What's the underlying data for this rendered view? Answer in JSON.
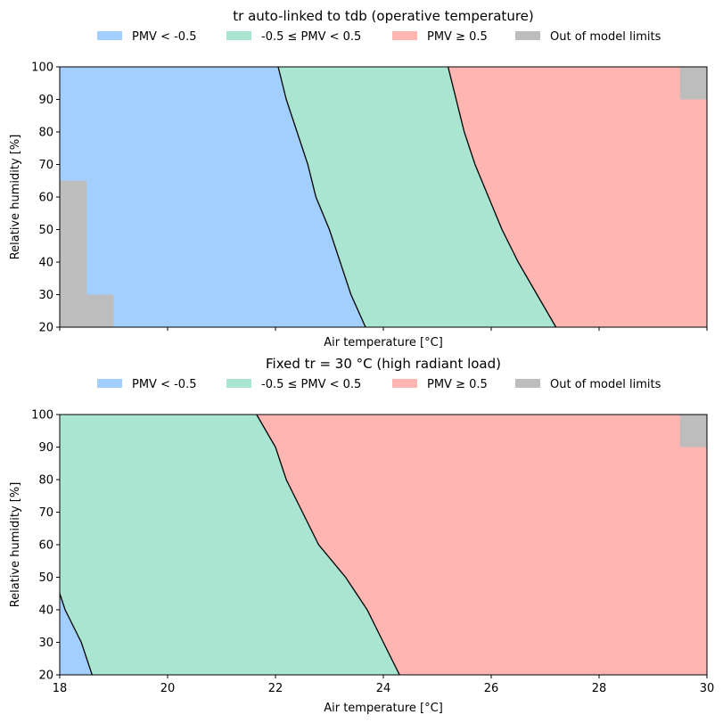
{
  "chart_data": [
    {
      "type": "area",
      "title": "tr auto-linked to tdb (operative temperature)",
      "xlabel": "Air temperature [°C]",
      "ylabel": "Relative humidity [%]",
      "xlim": [
        18,
        30
      ],
      "ylim": [
        20,
        100
      ],
      "xticks": [
        18,
        20,
        22,
        24,
        26,
        28,
        30
      ],
      "yticks": [
        20,
        30,
        40,
        50,
        60,
        70,
        80,
        90,
        100
      ],
      "show_xtick_labels": false,
      "grid": false,
      "legend": [
        {
          "label": "PMV < -0.5",
          "color": "#a3cfff"
        },
        {
          "label": "-0.5 ≤ PMV < 0.5",
          "color": "#a9e5d1"
        },
        {
          "label": "PMV ≥ 0.5",
          "color": "#ffb5b2"
        },
        {
          "label": "Out of model limits",
          "color": "#bdbdbd"
        }
      ],
      "legend_placement": "top-center",
      "boundaries": [
        {
          "name": "PMV = -0.5",
          "points": [
            [
              23.67,
              20
            ],
            [
              23.4,
              30
            ],
            [
              23.2,
              40
            ],
            [
              23.0,
              50
            ],
            [
              22.75,
              60
            ],
            [
              22.6,
              70
            ],
            [
              22.4,
              80
            ],
            [
              22.2,
              90
            ],
            [
              22.05,
              100
            ]
          ]
        },
        {
          "name": "PMV = 0.5",
          "points": [
            [
              27.2,
              20
            ],
            [
              26.85,
              30
            ],
            [
              26.5,
              40
            ],
            [
              26.2,
              50
            ],
            [
              25.95,
              60
            ],
            [
              25.7,
              70
            ],
            [
              25.5,
              80
            ],
            [
              25.35,
              90
            ],
            [
              25.2,
              100
            ]
          ]
        }
      ],
      "out_of_limits": [
        {
          "x": [
            18.0,
            18.5
          ],
          "y": [
            20,
            65
          ]
        },
        {
          "x": [
            18.5,
            19.0
          ],
          "y": [
            20,
            30
          ]
        },
        {
          "x": [
            29.5,
            30.0
          ],
          "y": [
            90,
            100
          ]
        }
      ]
    },
    {
      "type": "area",
      "title": "Fixed tr = 30 °C (high radiant load)",
      "xlabel": "Air temperature [°C]",
      "ylabel": "Relative humidity [%]",
      "xlim": [
        18,
        30
      ],
      "ylim": [
        20,
        100
      ],
      "xticks": [
        18,
        20,
        22,
        24,
        26,
        28,
        30
      ],
      "yticks": [
        20,
        30,
        40,
        50,
        60,
        70,
        80,
        90,
        100
      ],
      "show_xtick_labels": true,
      "grid": false,
      "legend": [
        {
          "label": "PMV < -0.5",
          "color": "#a3cfff"
        },
        {
          "label": "-0.5 ≤ PMV < 0.5",
          "color": "#a9e5d1"
        },
        {
          "label": "PMV ≥ 0.5",
          "color": "#ffb5b2"
        },
        {
          "label": "Out of model limits",
          "color": "#bdbdbd"
        }
      ],
      "legend_placement": "top-center",
      "boundaries": [
        {
          "name": "PMV = -0.5",
          "points": [
            [
              18.6,
              20
            ],
            [
              18.4,
              30
            ],
            [
              18.1,
              40
            ],
            [
              18.0,
              45
            ]
          ]
        },
        {
          "name": "PMV = 0.5",
          "points": [
            [
              24.3,
              20
            ],
            [
              24.0,
              30
            ],
            [
              23.7,
              40
            ],
            [
              23.3,
              50
            ],
            [
              22.8,
              60
            ],
            [
              22.5,
              70
            ],
            [
              22.2,
              80
            ],
            [
              22.0,
              90
            ],
            [
              21.65,
              100
            ]
          ]
        }
      ],
      "out_of_limits": [
        {
          "x": [
            29.5,
            30.0
          ],
          "y": [
            90,
            100
          ]
        }
      ]
    }
  ]
}
